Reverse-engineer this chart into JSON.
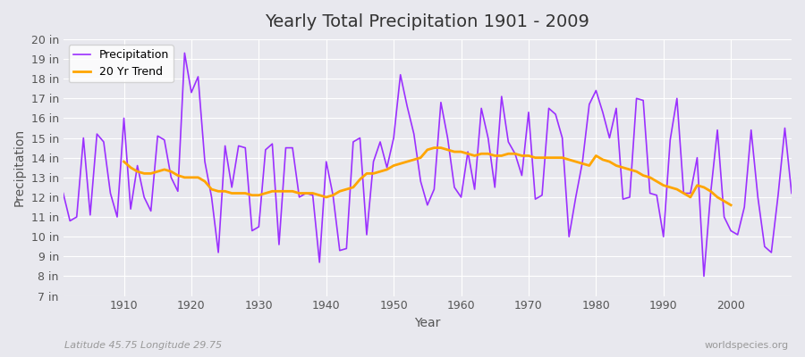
{
  "title": "Yearly Total Precipitation 1901 - 2009",
  "xlabel": "Year",
  "ylabel": "Precipitation",
  "subtitle": "Latitude 45.75 Longitude 29.75",
  "watermark": "worldspecies.org",
  "ylim": [
    7,
    20
  ],
  "yticks": [
    7,
    8,
    9,
    10,
    11,
    12,
    13,
    14,
    15,
    16,
    17,
    18,
    19,
    20
  ],
  "ytick_labels": [
    "7 in",
    "8 in",
    "9 in",
    "10 in",
    "11 in",
    "12 in",
    "13 in",
    "14 in",
    "15 in",
    "16 in",
    "17 in",
    "18 in",
    "19 in",
    "20 in"
  ],
  "xlim": [
    1901,
    2009
  ],
  "xticks": [
    1910,
    1920,
    1930,
    1940,
    1950,
    1960,
    1970,
    1980,
    1990,
    2000
  ],
  "precip_color": "#9B30FF",
  "trend_color": "#FFA500",
  "bg_color": "#E8E8EE",
  "plot_bg_color": "#E8E8EE",
  "grid_color": "#FFFFFF",
  "years": [
    1901,
    1902,
    1903,
    1904,
    1905,
    1906,
    1907,
    1908,
    1909,
    1910,
    1911,
    1912,
    1913,
    1914,
    1915,
    1916,
    1917,
    1918,
    1919,
    1920,
    1921,
    1922,
    1923,
    1924,
    1925,
    1926,
    1927,
    1928,
    1929,
    1930,
    1931,
    1932,
    1933,
    1934,
    1935,
    1936,
    1937,
    1938,
    1939,
    1940,
    1941,
    1942,
    1943,
    1944,
    1945,
    1946,
    1947,
    1948,
    1949,
    1950,
    1951,
    1952,
    1953,
    1954,
    1955,
    1956,
    1957,
    1958,
    1959,
    1960,
    1961,
    1962,
    1963,
    1964,
    1965,
    1966,
    1967,
    1968,
    1969,
    1970,
    1971,
    1972,
    1973,
    1974,
    1975,
    1976,
    1977,
    1978,
    1979,
    1980,
    1981,
    1982,
    1983,
    1984,
    1985,
    1986,
    1987,
    1988,
    1989,
    1990,
    1991,
    1992,
    1993,
    1994,
    1995,
    1996,
    1997,
    1998,
    1999,
    2000,
    2001,
    2002,
    2003,
    2004,
    2005,
    2006,
    2007,
    2008,
    2009
  ],
  "precipitation": [
    12.2,
    10.8,
    11.0,
    15.0,
    11.1,
    15.2,
    14.8,
    12.2,
    11.0,
    16.0,
    11.4,
    13.6,
    12.0,
    11.3,
    15.1,
    14.9,
    13.0,
    12.3,
    19.3,
    17.3,
    18.1,
    13.8,
    12.0,
    9.2,
    14.6,
    12.5,
    14.6,
    14.5,
    10.3,
    10.5,
    14.4,
    14.7,
    9.6,
    14.5,
    14.5,
    12.0,
    12.2,
    12.1,
    8.7,
    13.8,
    12.1,
    9.3,
    9.4,
    14.8,
    15.0,
    10.1,
    13.8,
    14.8,
    13.5,
    15.0,
    18.2,
    16.6,
    15.2,
    12.8,
    11.6,
    12.4,
    16.8,
    15.0,
    12.5,
    12.0,
    14.3,
    12.4,
    16.5,
    15.0,
    12.5,
    17.1,
    14.8,
    14.2,
    13.1,
    16.3,
    11.9,
    12.1,
    16.5,
    16.2,
    15.0,
    10.0,
    12.0,
    13.8,
    16.7,
    17.4,
    16.3,
    15.0,
    16.5,
    11.9,
    12.0,
    17.0,
    16.9,
    12.2,
    12.1,
    10.0,
    14.9,
    17.0,
    12.2,
    12.2,
    14.0,
    8.0,
    12.2,
    15.4,
    11.0,
    10.3,
    10.1,
    11.5,
    15.4,
    12.0,
    9.5,
    9.2,
    12.1,
    15.5,
    12.2
  ],
  "trend_years": [
    1910,
    1911,
    1912,
    1913,
    1914,
    1915,
    1916,
    1917,
    1918,
    1919,
    1920,
    1921,
    1922,
    1923,
    1924,
    1925,
    1926,
    1927,
    1928,
    1929,
    1930,
    1931,
    1932,
    1933,
    1934,
    1935,
    1936,
    1937,
    1938,
    1939,
    1940,
    1941,
    1942,
    1943,
    1944,
    1945,
    1946,
    1947,
    1948,
    1949,
    1950,
    1951,
    1952,
    1953,
    1954,
    1955,
    1956,
    1957,
    1958,
    1959,
    1960,
    1961,
    1962,
    1963,
    1964,
    1965,
    1966,
    1967,
    1968,
    1969,
    1970,
    1971,
    1972,
    1973,
    1974,
    1975,
    1976,
    1977,
    1978,
    1979,
    1980,
    1981,
    1982,
    1983,
    1984,
    1985,
    1986,
    1987,
    1988,
    1989,
    1990,
    1991,
    1992,
    1993,
    1994,
    1995,
    1996,
    1997,
    1998,
    1999,
    2000
  ],
  "trend": [
    13.8,
    13.5,
    13.3,
    13.2,
    13.2,
    13.3,
    13.4,
    13.3,
    13.1,
    13.0,
    13.0,
    13.0,
    12.8,
    12.4,
    12.3,
    12.3,
    12.2,
    12.2,
    12.2,
    12.1,
    12.1,
    12.2,
    12.3,
    12.3,
    12.3,
    12.3,
    12.2,
    12.2,
    12.2,
    12.1,
    12.0,
    12.1,
    12.3,
    12.4,
    12.5,
    12.9,
    13.2,
    13.2,
    13.3,
    13.4,
    13.6,
    13.7,
    13.8,
    13.9,
    14.0,
    14.4,
    14.5,
    14.5,
    14.4,
    14.3,
    14.3,
    14.2,
    14.1,
    14.2,
    14.2,
    14.1,
    14.1,
    14.2,
    14.2,
    14.1,
    14.1,
    14.0,
    14.0,
    14.0,
    14.0,
    14.0,
    13.9,
    13.8,
    13.7,
    13.6,
    14.1,
    13.9,
    13.8,
    13.6,
    13.5,
    13.4,
    13.3,
    13.1,
    13.0,
    12.8,
    12.6,
    12.5,
    12.4,
    12.2,
    12.0,
    12.6,
    12.5,
    12.3,
    12.0,
    11.8,
    11.6
  ]
}
